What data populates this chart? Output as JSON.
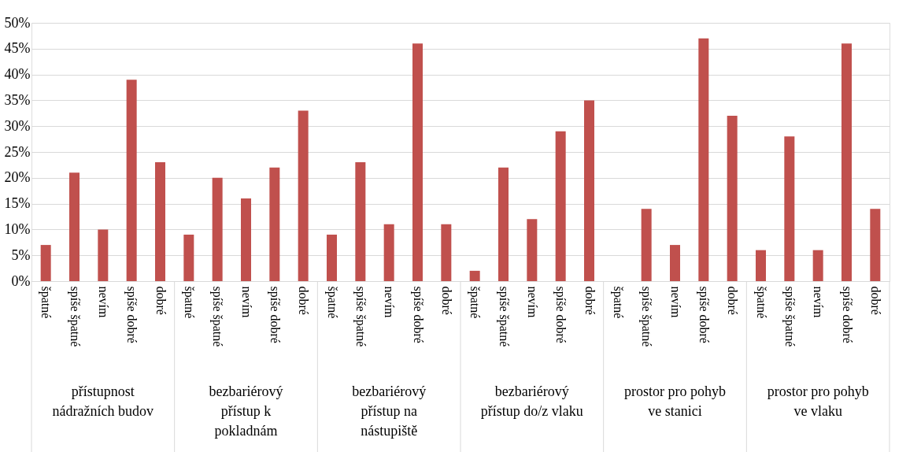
{
  "chart_data": {
    "type": "bar",
    "categories": [
      "špatné",
      "spíše špatné",
      "nevím",
      "spíše dobré",
      "dobré",
      "špatné",
      "spíše špatné",
      "nevím",
      "spíše dobré",
      "dobré",
      "špatné",
      "spíše špatné",
      "nevím",
      "spíše dobré",
      "dobré",
      "špatné",
      "spíše špatné",
      "nevím",
      "spíše dobré",
      "dobré",
      "špatné",
      "spíše špatné",
      "nevím",
      "spíše dobré",
      "dobré",
      "špatné",
      "spíše špatné",
      "nevím",
      "spíše dobré",
      "dobré"
    ],
    "values": [
      7,
      21,
      10,
      39,
      23,
      9,
      20,
      16,
      22,
      33,
      9,
      23,
      11,
      46,
      11,
      2,
      22,
      12,
      29,
      35,
      0,
      14,
      7,
      47,
      32,
      6,
      28,
      6,
      46,
      14
    ],
    "color": "#c0504d",
    "annotations": [
      "přístupnost nádražních budov",
      "bezbariérový přístup k pokladnám",
      "bezbariérový přístup na nástupiště",
      "bezbariérový přístup do/z vlaku",
      "prostor pro pohyb ve stanici",
      "prostor pro pohyb ve vlaku"
    ],
    "ylim": [
      0,
      50
    ],
    "yticks": [
      {
        "value": 0,
        "label": "0%"
      },
      {
        "value": 5,
        "label": "5%"
      },
      {
        "value": 10,
        "label": "10%"
      },
      {
        "value": 15,
        "label": "15%"
      },
      {
        "value": 20,
        "label": "20%"
      },
      {
        "value": 25,
        "label": "25%"
      },
      {
        "value": 30,
        "label": "30%"
      },
      {
        "value": 35,
        "label": "35%"
      },
      {
        "value": 40,
        "label": "40%"
      },
      {
        "value": 45,
        "label": "45%"
      },
      {
        "value": 50,
        "label": "50%"
      }
    ],
    "grid": "y"
  }
}
